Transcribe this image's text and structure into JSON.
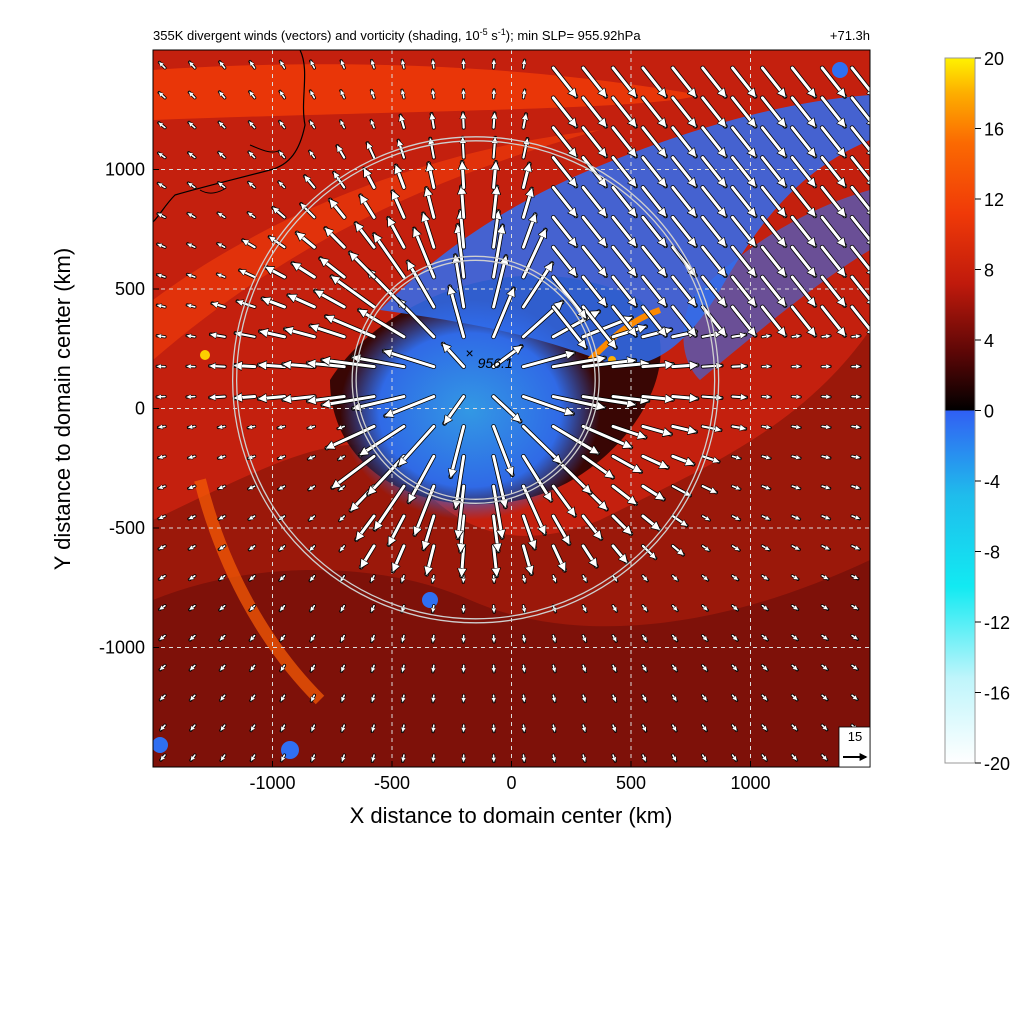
{
  "chart_data": {
    "type": "heatmap",
    "title": "355K divergent winds (vectors) and vorticity (shading, 10",
    "title_exponent": "-5",
    "title_unit": " s",
    "title_unit_exponent": "-1",
    "title_tail": "); min SLP= 955.92hPa",
    "time_label": "+71.3h",
    "xlabel": "X distance to domain center (km)",
    "ylabel": "Y distance to domain center (km)",
    "xlim": [
      -1500,
      1500
    ],
    "ylim": [
      -1500,
      1500
    ],
    "xticks": [
      "-1000",
      "-500",
      "0",
      "500",
      "1000"
    ],
    "yticks": [
      "1000",
      "500",
      "0",
      "-500",
      "-1000"
    ],
    "grid": true,
    "center_label": "956.1",
    "center": [
      -150,
      120
    ],
    "rings_km": [
      500,
      1000
    ],
    "ref_vector_label": "15",
    "colorbar": {
      "min": -20,
      "max": 20,
      "ticks": [
        "20",
        "16",
        "12",
        "8",
        "4",
        "0",
        "-4",
        "-8",
        "-12",
        "-16",
        "-20"
      ],
      "colors": [
        "#ffffff",
        "#aef6fb",
        "#12eaf2",
        "#1fbcec",
        "#2f6ff2",
        "#000000",
        "#7a0a0a",
        "#d8240c",
        "#f44a06",
        "#fd8a00",
        "#fff200"
      ]
    }
  }
}
